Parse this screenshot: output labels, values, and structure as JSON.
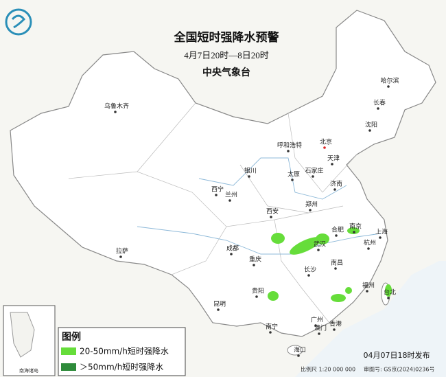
{
  "header": {
    "title": "全国短时强降水预警",
    "subtitle": "4月7日20时—8日20时",
    "issuer": "中央气象台"
  },
  "cities": [
    {
      "label": "乌鲁木齐"
    },
    {
      "label": "哈尔滨"
    },
    {
      "label": "长春"
    },
    {
      "label": "沈阳"
    },
    {
      "label": "呼和浩特"
    },
    {
      "label": "北京"
    },
    {
      "label": "天津"
    },
    {
      "label": "银川"
    },
    {
      "label": "太原"
    },
    {
      "label": "石家庄"
    },
    {
      "label": "济南"
    },
    {
      "label": "西宁"
    },
    {
      "label": "兰州"
    },
    {
      "label": "郑州"
    },
    {
      "label": "西安"
    },
    {
      "label": "合肥"
    },
    {
      "label": "南京"
    },
    {
      "label": "上海"
    },
    {
      "label": "武汉"
    },
    {
      "label": "杭州"
    },
    {
      "label": "成都"
    },
    {
      "label": "重庆"
    },
    {
      "label": "拉萨"
    },
    {
      "label": "南昌"
    },
    {
      "label": "长沙"
    },
    {
      "label": "福州"
    },
    {
      "label": "台北"
    },
    {
      "label": "贵阳"
    },
    {
      "label": "昆明"
    },
    {
      "label": "南宁"
    },
    {
      "label": "广州"
    },
    {
      "label": "香港"
    },
    {
      "label": "澳门"
    },
    {
      "label": "海口"
    }
  ],
  "legend": {
    "title": "图例",
    "items": [
      {
        "label": "20-50mm/h短时强降水"
      },
      {
        "label": "＞50mm/h短时强降水"
      }
    ]
  },
  "inset": {
    "label": "南海诸岛"
  },
  "footer": {
    "issued": "04月07日18时发布",
    "scale": "比例尺 1:20 000 000",
    "approval": "审图号: GS京(2024)0236号"
  }
}
